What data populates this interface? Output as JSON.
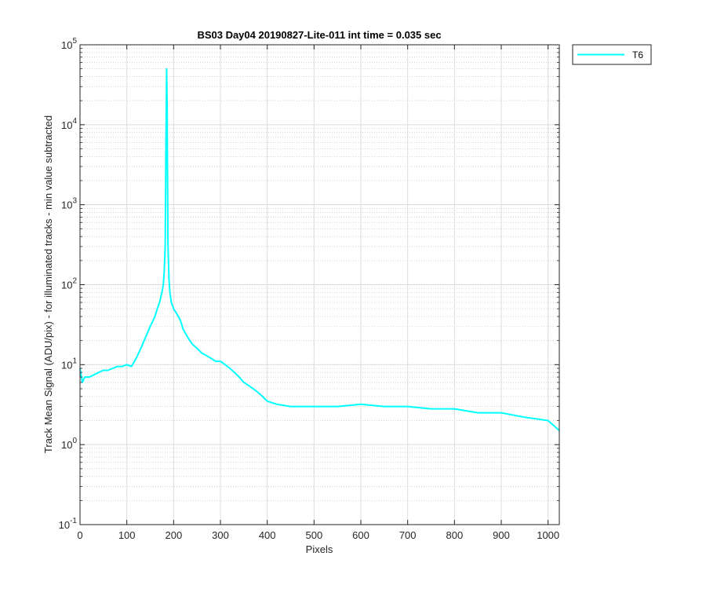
{
  "chart_data": {
    "type": "line",
    "title": "BS03 Day04 20190827-Lite-011 int time = 0.035 sec",
    "xlabel": "Pixels",
    "ylabel": "Track Mean Signal (ADU/pix) - for illuminated tracks - min value subtracted",
    "xlim": [
      0,
      1024
    ],
    "ylim": [
      0.1,
      100000
    ],
    "yscale": "log",
    "grid": true,
    "minor_grid": true,
    "legend_position": "outside-top-right",
    "x_ticks": [
      0,
      100,
      200,
      300,
      400,
      500,
      600,
      700,
      800,
      900,
      1000
    ],
    "y_ticks": [
      {
        "value": 0.1,
        "base": "10",
        "exp": "-1"
      },
      {
        "value": 1,
        "base": "10",
        "exp": "0"
      },
      {
        "value": 10,
        "base": "10",
        "exp": "1"
      },
      {
        "value": 100,
        "base": "10",
        "exp": "2"
      },
      {
        "value": 1000,
        "base": "10",
        "exp": "3"
      },
      {
        "value": 10000,
        "base": "10",
        "exp": "4"
      },
      {
        "value": 100000,
        "base": "10",
        "exp": "5"
      }
    ],
    "series": [
      {
        "name": "T6",
        "color": "#00ffff",
        "x": [
          0,
          5,
          10,
          20,
          30,
          40,
          50,
          60,
          70,
          80,
          90,
          100,
          110,
          120,
          130,
          140,
          150,
          160,
          165,
          170,
          175,
          178,
          180,
          182,
          184,
          185,
          186,
          187,
          188,
          190,
          192,
          195,
          200,
          205,
          210,
          215,
          220,
          230,
          240,
          250,
          260,
          270,
          280,
          290,
          300,
          310,
          320,
          330,
          340,
          350,
          360,
          370,
          380,
          390,
          400,
          420,
          450,
          500,
          550,
          600,
          650,
          700,
          750,
          800,
          850,
          900,
          950,
          1000,
          1024
        ],
        "y": [
          9,
          6,
          7,
          7,
          7.5,
          8,
          8.5,
          8.5,
          9,
          9.5,
          9.5,
          10,
          9.5,
          12,
          16,
          22,
          30,
          40,
          50,
          60,
          80,
          100,
          150,
          300,
          10000,
          50000,
          20000,
          2000,
          300,
          120,
          80,
          60,
          50,
          45,
          40,
          35,
          28,
          22,
          18,
          16,
          14,
          13,
          12,
          11,
          11,
          10,
          9,
          8,
          7,
          6,
          5.5,
          5,
          4.5,
          4,
          3.5,
          3.2,
          3,
          3,
          3,
          3.2,
          3,
          3,
          2.8,
          2.8,
          2.5,
          2.5,
          2.2,
          2,
          1.5
        ]
      }
    ]
  }
}
